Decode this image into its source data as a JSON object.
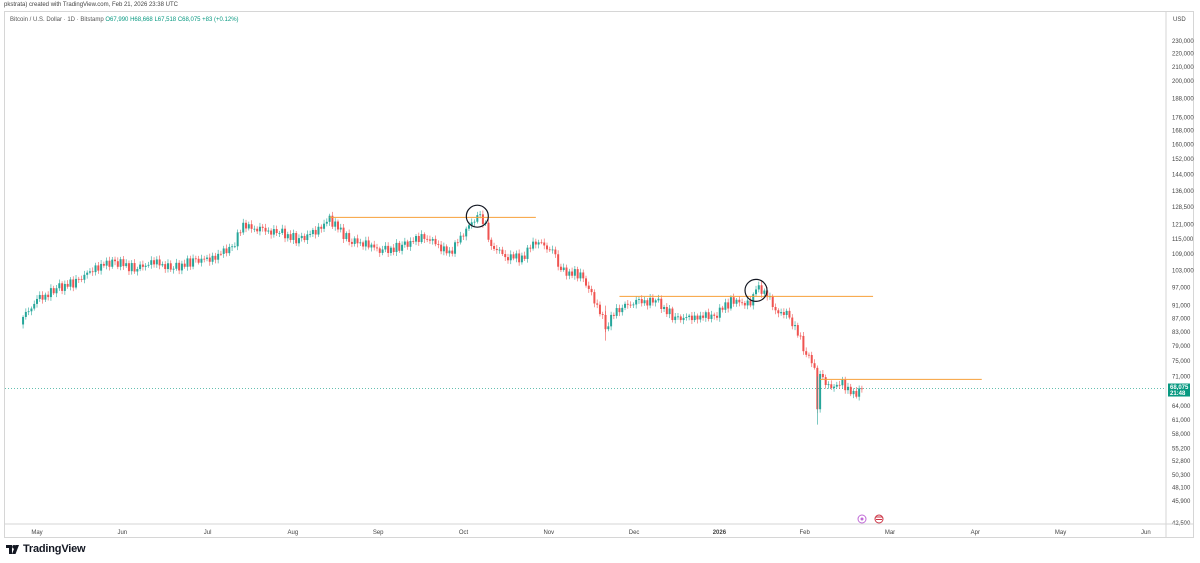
{
  "header": {
    "caption": "pkstrata) created with TradingView.com, Feb 21, 2026 23:38 UTC"
  },
  "legend": {
    "symbol": "Bitcoin / U.S. Dollar · 1D · Bitstamp",
    "o": "O67,990",
    "h": "H68,668",
    "l": "L67,518",
    "c": "C68,075",
    "chg": "+83 (+0.12%)"
  },
  "price_axis": {
    "currency": "USD",
    "last_price": "68,075",
    "countdown": "21:48"
  },
  "footer": {
    "brand": "TradingView"
  },
  "colors": {
    "up": "#26a69a",
    "down": "#ef5350",
    "level": "#f7a03a",
    "last": "#089981"
  },
  "chart_data": {
    "type": "candlestick",
    "title": "Bitcoin / U.S. Dollar · 1D · Bitstamp",
    "y_scale": "log",
    "ylim": [
      42500,
      240000
    ],
    "y_ticks": [
      230000,
      220000,
      210000,
      200000,
      188000,
      176000,
      168000,
      160000,
      152000,
      144000,
      136000,
      128500,
      121000,
      115000,
      109000,
      103000,
      97000,
      91000,
      87000,
      83000,
      79000,
      75000,
      71000,
      68075,
      64000,
      61000,
      58000,
      55200,
      52800,
      50300,
      48100,
      45900,
      42500
    ],
    "x_ticks": [
      "May",
      "Jun",
      "Jul",
      "Aug",
      "Sep",
      "Oct",
      "Nov",
      "Dec",
      "2026",
      "Feb",
      "Mar",
      "Apr",
      "May",
      "Jun"
    ],
    "closes": [
      {
        "date": "2025-04-25",
        "close": 86500
      },
      {
        "date": "2025-05-01",
        "close": 92500
      },
      {
        "date": "2025-05-08",
        "close": 96500
      },
      {
        "date": "2025-05-15",
        "close": 99000
      },
      {
        "date": "2025-05-22",
        "close": 104000
      },
      {
        "date": "2025-05-29",
        "close": 106500
      },
      {
        "date": "2025-06-05",
        "close": 103500
      },
      {
        "date": "2025-06-12",
        "close": 106000
      },
      {
        "date": "2025-06-19",
        "close": 103500
      },
      {
        "date": "2025-06-26",
        "close": 106500
      },
      {
        "date": "2025-07-03",
        "close": 107500
      },
      {
        "date": "2025-07-10",
        "close": 112000
      },
      {
        "date": "2025-07-14",
        "close": 120500
      },
      {
        "date": "2025-07-20",
        "close": 118500
      },
      {
        "date": "2025-07-27",
        "close": 117500
      },
      {
        "date": "2025-08-03",
        "close": 114500
      },
      {
        "date": "2025-08-10",
        "close": 119000
      },
      {
        "date": "2025-08-14",
        "close": 123500
      },
      {
        "date": "2025-08-21",
        "close": 114500
      },
      {
        "date": "2025-08-28",
        "close": 112500
      },
      {
        "date": "2025-09-02",
        "close": 110000
      },
      {
        "date": "2025-09-09",
        "close": 112000
      },
      {
        "date": "2025-09-16",
        "close": 116000
      },
      {
        "date": "2025-09-22",
        "close": 113000
      },
      {
        "date": "2025-09-26",
        "close": 109000
      },
      {
        "date": "2025-10-01",
        "close": 117500
      },
      {
        "date": "2025-10-06",
        "close": 124500
      },
      {
        "date": "2025-10-09",
        "close": 121000
      },
      {
        "date": "2025-10-10",
        "close": 113000
      },
      {
        "date": "2025-10-16",
        "close": 108500
      },
      {
        "date": "2025-10-22",
        "close": 107500
      },
      {
        "date": "2025-10-27",
        "close": 114500
      },
      {
        "date": "2025-11-02",
        "close": 110000
      },
      {
        "date": "2025-11-05",
        "close": 102500
      },
      {
        "date": "2025-11-12",
        "close": 101500
      },
      {
        "date": "2025-11-16",
        "close": 95000
      },
      {
        "date": "2025-11-21",
        "close": 85000
      },
      {
        "date": "2025-11-26",
        "close": 90500
      },
      {
        "date": "2025-12-02",
        "close": 92000
      },
      {
        "date": "2025-12-09",
        "close": 92500
      },
      {
        "date": "2025-12-16",
        "close": 87000
      },
      {
        "date": "2025-12-23",
        "close": 87500
      },
      {
        "date": "2025-12-30",
        "close": 88000
      },
      {
        "date": "2026-01-05",
        "close": 92500
      },
      {
        "date": "2026-01-12",
        "close": 91500
      },
      {
        "date": "2026-01-14",
        "close": 96500
      },
      {
        "date": "2026-01-18",
        "close": 95000
      },
      {
        "date": "2026-01-21",
        "close": 89500
      },
      {
        "date": "2026-01-26",
        "close": 88000
      },
      {
        "date": "2026-01-31",
        "close": 79000
      },
      {
        "date": "2026-02-04",
        "close": 73000
      },
      {
        "date": "2026-02-05",
        "close": 63000
      },
      {
        "date": "2026-02-06",
        "close": 70500
      },
      {
        "date": "2026-02-10",
        "close": 68500
      },
      {
        "date": "2026-02-14",
        "close": 69500
      },
      {
        "date": "2026-02-18",
        "close": 66500
      },
      {
        "date": "2026-02-21",
        "close": 68075
      }
    ],
    "horizontal_levels": [
      {
        "price": 124000,
        "from": "2025-08-14",
        "to": "2025-10-27"
      },
      {
        "price": 94000,
        "from": "2025-11-26",
        "to": "2026-02-25"
      },
      {
        "price": 70300,
        "from": "2026-02-06",
        "to": "2026-04-05"
      }
    ],
    "circled_points": [
      {
        "date": "2025-10-06",
        "price": 124500
      },
      {
        "date": "2026-01-14",
        "price": 96000
      }
    ]
  }
}
